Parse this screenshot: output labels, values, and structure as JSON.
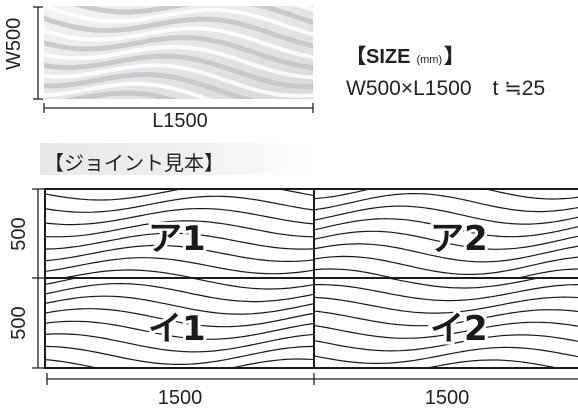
{
  "sample": {
    "width_label": "W500",
    "length_label": "L1500"
  },
  "size": {
    "title": "【SIZE",
    "unit": "(mm)",
    "title_end": "】",
    "spec": "W500×L1500　t ≒25"
  },
  "joint": {
    "title": "【ジョイント見本】",
    "panels": [
      {
        "name": "panel-a1",
        "label": "ア1"
      },
      {
        "name": "panel-a2",
        "label": "ア2"
      },
      {
        "name": "panel-i1",
        "label": "イ1"
      },
      {
        "name": "panel-i2",
        "label": "イ2"
      }
    ],
    "row_heights": [
      "500",
      "500"
    ],
    "column_widths": [
      "1500",
      "1500"
    ]
  },
  "colors": {
    "panel_surface": "#e9e9ea",
    "line": "#1a1a1a"
  }
}
